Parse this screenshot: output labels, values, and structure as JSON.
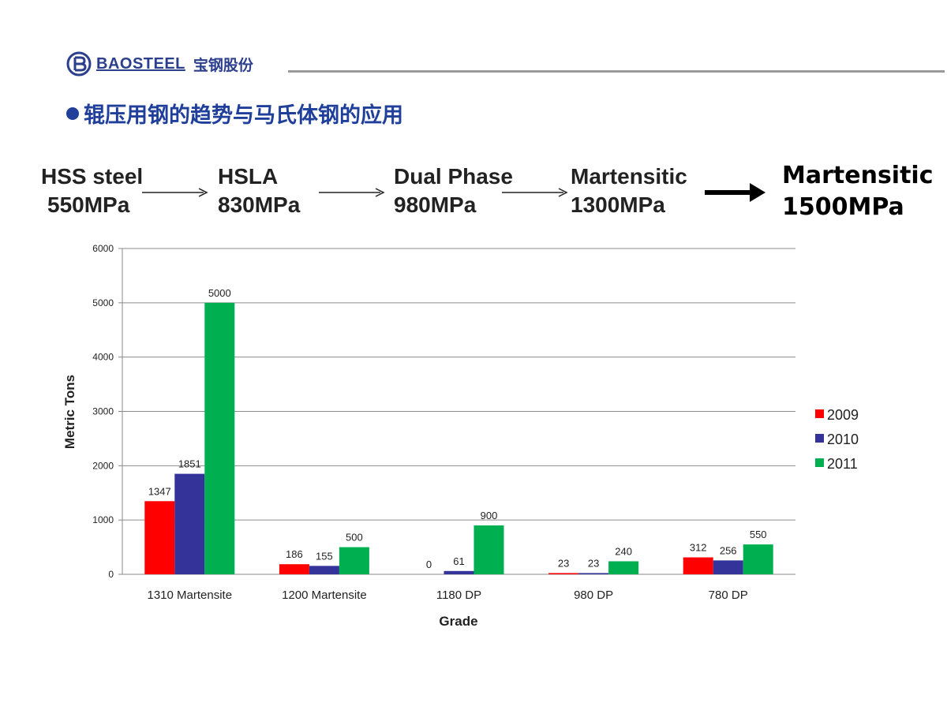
{
  "header": {
    "logo_text_en": "BAOSTEEL",
    "logo_text_cn": "宝钢股份"
  },
  "slide": {
    "title": "辊压用钢的趋势与马氏体钢的应用",
    "title_color": "#1f3f9a"
  },
  "progression": [
    {
      "name": "HSS steel",
      "strength": "550MPa"
    },
    {
      "name": "HSLA",
      "strength": "830MPa"
    },
    {
      "name": "Dual Phase",
      "strength": "980MPa"
    },
    {
      "name": "Martensitic",
      "strength": "1300MPa"
    },
    {
      "name": "Martensitic",
      "strength": "1500MPa"
    }
  ],
  "chart_data": {
    "type": "bar",
    "xlabel": "Grade",
    "ylabel": "Metric Tons",
    "ylim": [
      0,
      6000
    ],
    "yticks": [
      0,
      1000,
      2000,
      3000,
      4000,
      5000,
      6000
    ],
    "grid": true,
    "legend_position": "right",
    "categories": [
      "1310 Martensite",
      "1200 Martensite",
      "1180 DP",
      "980 DP",
      "780 DP"
    ],
    "series": [
      {
        "name": "2009",
        "color": "#ff0000",
        "values": [
          1347,
          186,
          0,
          23,
          312
        ]
      },
      {
        "name": "2010",
        "color": "#333399",
        "values": [
          1851,
          155,
          61,
          23,
          256
        ]
      },
      {
        "name": "2011",
        "color": "#00b050",
        "values": [
          5000,
          500,
          900,
          240,
          550
        ]
      }
    ]
  }
}
